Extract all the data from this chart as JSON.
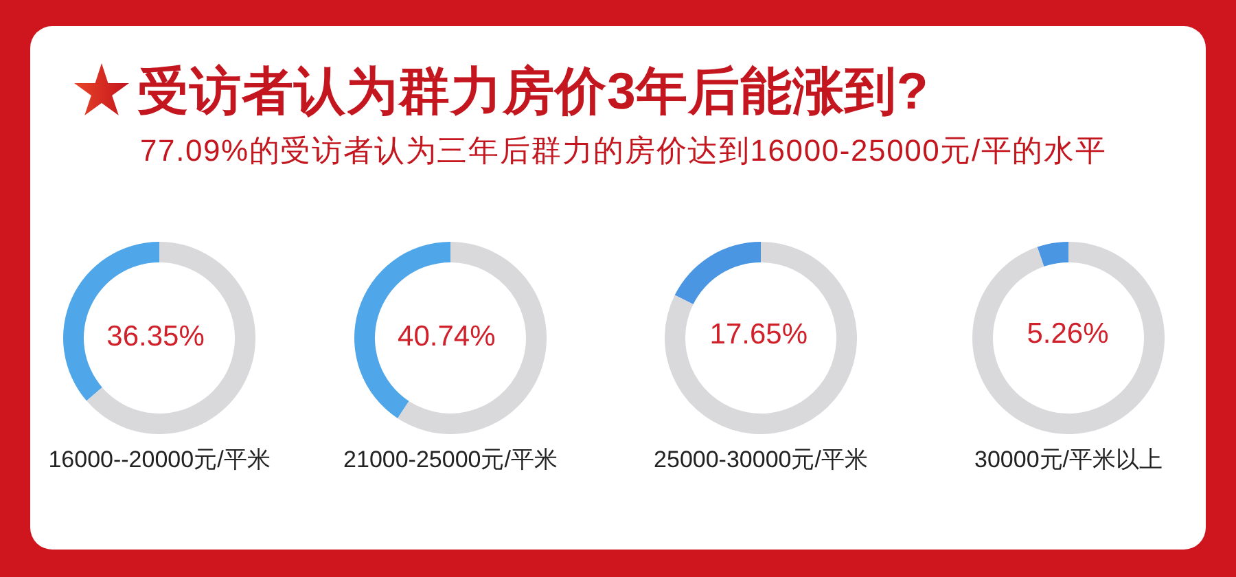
{
  "chart_data": [
    {
      "type": "other",
      "title": "受访者认为群力房价3年后能涨到?",
      "subtitle": "77.09%的受访者认为三年后群力的房价达到16000-25000元/平的水平"
    },
    {
      "type": "donut",
      "title": "16000--20000元/平米",
      "categories": [
        null,
        null
      ],
      "values": [
        36.35,
        63.65
      ],
      "colors": [
        "#4fa6e8",
        "#d9d9dc"
      ],
      "value_labels": [
        "36.35%",
        null
      ]
    },
    {
      "type": "donut",
      "title": "21000-25000元/平米",
      "categories": [
        null,
        null
      ],
      "values": [
        40.74,
        59.26
      ],
      "colors": [
        "#4fa6e8",
        "#d9d9dc"
      ],
      "value_labels": [
        "40.74%",
        null
      ]
    },
    {
      "type": "donut",
      "title": "25000-30000元/平米",
      "categories": [
        null,
        null
      ],
      "values": [
        17.65,
        82.35
      ],
      "colors": [
        "#4a96e2",
        "#d9d9dc"
      ],
      "value_labels": [
        "17.65%",
        null
      ]
    },
    {
      "type": "donut",
      "title": "30000元/平米以上",
      "categories": [
        null,
        null
      ],
      "values": [
        5.26,
        94.74
      ],
      "colors": [
        "#4a96e2",
        "#d9d9dc"
      ],
      "value_labels": [
        "5.26%",
        null
      ]
    }
  ]
}
